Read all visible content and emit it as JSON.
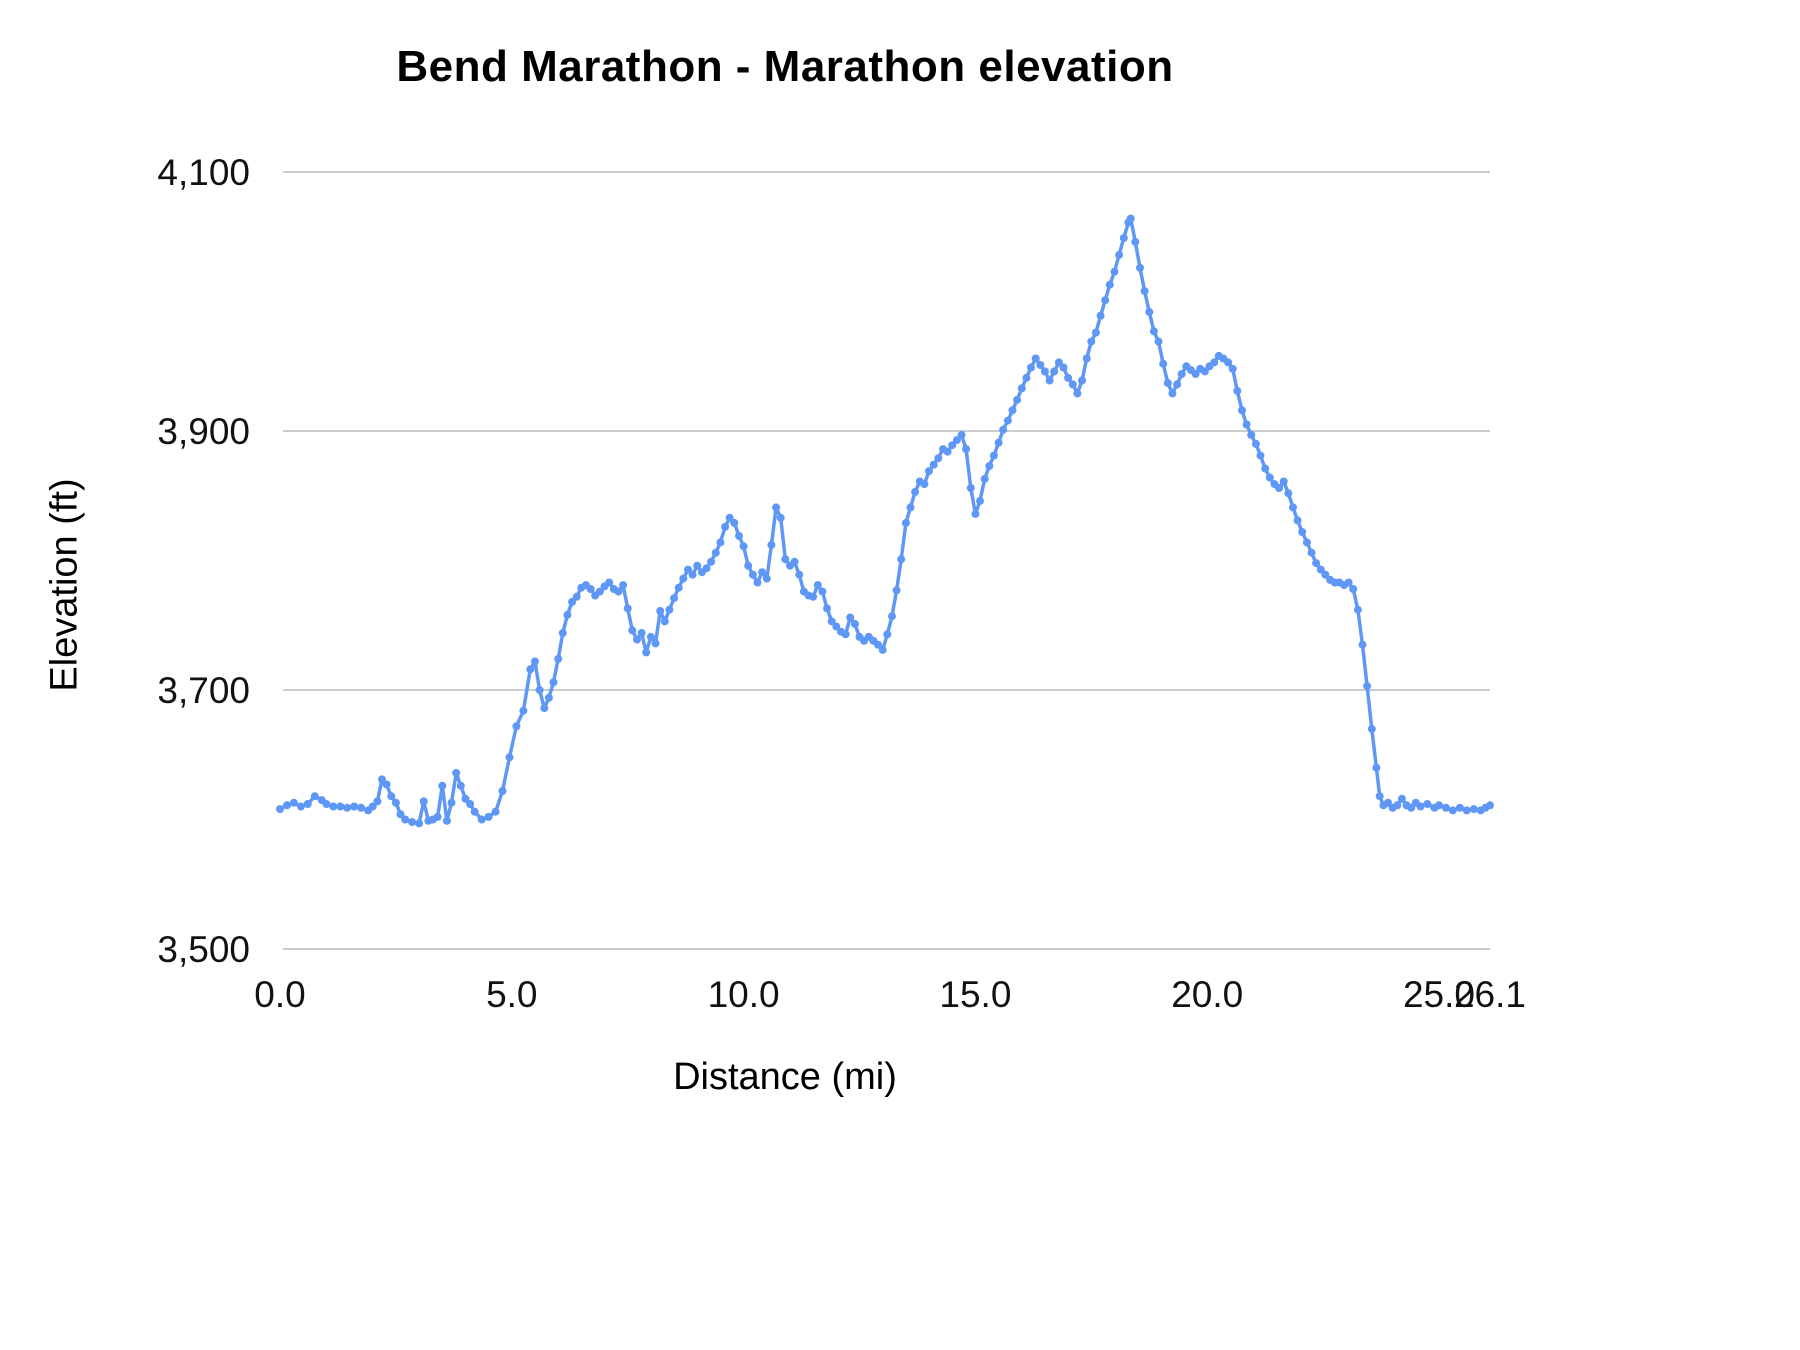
{
  "colors": {
    "line": "#5e97f6",
    "grid": "#cccccc",
    "tick_text": "#111111",
    "title_text": "#000000"
  },
  "chart_data": {
    "type": "line",
    "title": "Bend Marathon - Marathon elevation",
    "xlabel": "Distance (mi)",
    "ylabel": "Elevation (ft)",
    "xlim": [
      0,
      26.1
    ],
    "ylim": [
      3500,
      4100
    ],
    "grid": "horizontal-only",
    "legend": "none",
    "marker": "point",
    "xticks": [
      {
        "v": 0.0,
        "label": "0.0"
      },
      {
        "v": 5.0,
        "label": "5.0"
      },
      {
        "v": 10.0,
        "label": "10.0"
      },
      {
        "v": 15.0,
        "label": "15.0"
      },
      {
        "v": 20.0,
        "label": "20.0"
      },
      {
        "v": 25.0,
        "label": "25.0"
      },
      {
        "v": 26.1,
        "label": "26.1"
      }
    ],
    "yticks": [
      {
        "v": 3500,
        "label": "3,500"
      },
      {
        "v": 3700,
        "label": "3,700"
      },
      {
        "v": 3900,
        "label": "3,900"
      },
      {
        "v": 4100,
        "label": "4,100"
      }
    ],
    "series_name": "Marathon elevation",
    "points": [
      [
        0.0,
        3608
      ],
      [
        0.15,
        3611
      ],
      [
        0.3,
        3613
      ],
      [
        0.45,
        3610
      ],
      [
        0.6,
        3612
      ],
      [
        0.75,
        3618
      ],
      [
        0.9,
        3615
      ],
      [
        1.0,
        3612
      ],
      [
        1.15,
        3610
      ],
      [
        1.3,
        3610
      ],
      [
        1.45,
        3609
      ],
      [
        1.6,
        3610
      ],
      [
        1.75,
        3609
      ],
      [
        1.9,
        3607
      ],
      [
        2.0,
        3610
      ],
      [
        2.1,
        3614
      ],
      [
        2.2,
        3631
      ],
      [
        2.3,
        3627
      ],
      [
        2.4,
        3618
      ],
      [
        2.5,
        3613
      ],
      [
        2.6,
        3604
      ],
      [
        2.7,
        3600
      ],
      [
        2.85,
        3598
      ],
      [
        3.0,
        3597
      ],
      [
        3.1,
        3614
      ],
      [
        3.2,
        3599
      ],
      [
        3.3,
        3600
      ],
      [
        3.4,
        3602
      ],
      [
        3.5,
        3626
      ],
      [
        3.6,
        3599
      ],
      [
        3.7,
        3613
      ],
      [
        3.8,
        3636
      ],
      [
        3.9,
        3626
      ],
      [
        4.0,
        3616
      ],
      [
        4.1,
        3612
      ],
      [
        4.2,
        3606
      ],
      [
        4.35,
        3600
      ],
      [
        4.5,
        3602
      ],
      [
        4.65,
        3606
      ],
      [
        4.8,
        3622
      ],
      [
        4.95,
        3648
      ],
      [
        5.1,
        3672
      ],
      [
        5.25,
        3684
      ],
      [
        5.4,
        3716
      ],
      [
        5.5,
        3722
      ],
      [
        5.6,
        3700
      ],
      [
        5.7,
        3686
      ],
      [
        5.8,
        3694
      ],
      [
        5.9,
        3706
      ],
      [
        6.0,
        3724
      ],
      [
        6.1,
        3744
      ],
      [
        6.2,
        3758
      ],
      [
        6.3,
        3768
      ],
      [
        6.4,
        3772
      ],
      [
        6.5,
        3779
      ],
      [
        6.6,
        3781
      ],
      [
        6.7,
        3778
      ],
      [
        6.8,
        3773
      ],
      [
        6.9,
        3776
      ],
      [
        7.0,
        3780
      ],
      [
        7.1,
        3783
      ],
      [
        7.2,
        3778
      ],
      [
        7.3,
        3776
      ],
      [
        7.4,
        3781
      ],
      [
        7.5,
        3763
      ],
      [
        7.6,
        3746
      ],
      [
        7.7,
        3739
      ],
      [
        7.8,
        3744
      ],
      [
        7.9,
        3729
      ],
      [
        8.0,
        3741
      ],
      [
        8.1,
        3736
      ],
      [
        8.2,
        3761
      ],
      [
        8.3,
        3753
      ],
      [
        8.4,
        3762
      ],
      [
        8.5,
        3771
      ],
      [
        8.6,
        3779
      ],
      [
        8.7,
        3786
      ],
      [
        8.8,
        3793
      ],
      [
        8.9,
        3789
      ],
      [
        9.0,
        3796
      ],
      [
        9.1,
        3791
      ],
      [
        9.2,
        3794
      ],
      [
        9.3,
        3799
      ],
      [
        9.4,
        3806
      ],
      [
        9.5,
        3814
      ],
      [
        9.6,
        3826
      ],
      [
        9.7,
        3833
      ],
      [
        9.8,
        3829
      ],
      [
        9.9,
        3819
      ],
      [
        10.0,
        3811
      ],
      [
        10.1,
        3796
      ],
      [
        10.2,
        3789
      ],
      [
        10.3,
        3783
      ],
      [
        10.4,
        3791
      ],
      [
        10.5,
        3786
      ],
      [
        10.6,
        3812
      ],
      [
        10.7,
        3841
      ],
      [
        10.8,
        3833
      ],
      [
        10.9,
        3801
      ],
      [
        11.0,
        3796
      ],
      [
        11.1,
        3799
      ],
      [
        11.2,
        3789
      ],
      [
        11.3,
        3776
      ],
      [
        11.4,
        3773
      ],
      [
        11.5,
        3772
      ],
      [
        11.6,
        3781
      ],
      [
        11.7,
        3776
      ],
      [
        11.8,
        3763
      ],
      [
        11.9,
        3753
      ],
      [
        12.0,
        3749
      ],
      [
        12.1,
        3745
      ],
      [
        12.2,
        3743
      ],
      [
        12.3,
        3756
      ],
      [
        12.4,
        3751
      ],
      [
        12.5,
        3741
      ],
      [
        12.6,
        3738
      ],
      [
        12.7,
        3741
      ],
      [
        12.8,
        3738
      ],
      [
        12.9,
        3735
      ],
      [
        13.0,
        3731
      ],
      [
        13.1,
        3743
      ],
      [
        13.2,
        3757
      ],
      [
        13.3,
        3777
      ],
      [
        13.4,
        3801
      ],
      [
        13.5,
        3829
      ],
      [
        13.6,
        3841
      ],
      [
        13.7,
        3853
      ],
      [
        13.8,
        3861
      ],
      [
        13.9,
        3859
      ],
      [
        14.0,
        3869
      ],
      [
        14.1,
        3874
      ],
      [
        14.2,
        3879
      ],
      [
        14.3,
        3886
      ],
      [
        14.4,
        3884
      ],
      [
        14.5,
        3889
      ],
      [
        14.6,
        3893
      ],
      [
        14.7,
        3897
      ],
      [
        14.8,
        3886
      ],
      [
        14.9,
        3856
      ],
      [
        15.0,
        3836
      ],
      [
        15.1,
        3846
      ],
      [
        15.2,
        3863
      ],
      [
        15.3,
        3873
      ],
      [
        15.4,
        3881
      ],
      [
        15.5,
        3891
      ],
      [
        15.6,
        3901
      ],
      [
        15.7,
        3908
      ],
      [
        15.8,
        3916
      ],
      [
        15.9,
        3924
      ],
      [
        16.0,
        3933
      ],
      [
        16.1,
        3941
      ],
      [
        16.2,
        3949
      ],
      [
        16.3,
        3956
      ],
      [
        16.4,
        3951
      ],
      [
        16.5,
        3946
      ],
      [
        16.6,
        3939
      ],
      [
        16.7,
        3946
      ],
      [
        16.8,
        3953
      ],
      [
        16.9,
        3949
      ],
      [
        17.0,
        3941
      ],
      [
        17.1,
        3936
      ],
      [
        17.2,
        3929
      ],
      [
        17.3,
        3939
      ],
      [
        17.4,
        3956
      ],
      [
        17.5,
        3969
      ],
      [
        17.6,
        3976
      ],
      [
        17.7,
        3989
      ],
      [
        17.8,
        4001
      ],
      [
        17.9,
        4013
      ],
      [
        18.0,
        4023
      ],
      [
        18.1,
        4036
      ],
      [
        18.2,
        4049
      ],
      [
        18.3,
        4061
      ],
      [
        18.35,
        4064
      ],
      [
        18.45,
        4046
      ],
      [
        18.55,
        4026
      ],
      [
        18.65,
        4008
      ],
      [
        18.75,
        3992
      ],
      [
        18.85,
        3977
      ],
      [
        18.95,
        3969
      ],
      [
        19.05,
        3952
      ],
      [
        19.15,
        3937
      ],
      [
        19.25,
        3929
      ],
      [
        19.35,
        3936
      ],
      [
        19.45,
        3944
      ],
      [
        19.55,
        3950
      ],
      [
        19.65,
        3947
      ],
      [
        19.75,
        3944
      ],
      [
        19.85,
        3948
      ],
      [
        19.95,
        3946
      ],
      [
        20.05,
        3950
      ],
      [
        20.15,
        3953
      ],
      [
        20.25,
        3958
      ],
      [
        20.35,
        3956
      ],
      [
        20.45,
        3953
      ],
      [
        20.55,
        3948
      ],
      [
        20.65,
        3931
      ],
      [
        20.75,
        3916
      ],
      [
        20.85,
        3905
      ],
      [
        20.95,
        3897
      ],
      [
        21.05,
        3890
      ],
      [
        21.15,
        3881
      ],
      [
        21.25,
        3871
      ],
      [
        21.35,
        3864
      ],
      [
        21.45,
        3859
      ],
      [
        21.55,
        3856
      ],
      [
        21.65,
        3861
      ],
      [
        21.75,
        3852
      ],
      [
        21.85,
        3841
      ],
      [
        21.95,
        3831
      ],
      [
        22.05,
        3822
      ],
      [
        22.15,
        3814
      ],
      [
        22.25,
        3806
      ],
      [
        22.35,
        3798
      ],
      [
        22.45,
        3793
      ],
      [
        22.55,
        3789
      ],
      [
        22.65,
        3785
      ],
      [
        22.75,
        3783
      ],
      [
        22.85,
        3783
      ],
      [
        22.95,
        3781
      ],
      [
        23.05,
        3783
      ],
      [
        23.15,
        3778
      ],
      [
        23.25,
        3762
      ],
      [
        23.35,
        3735
      ],
      [
        23.45,
        3703
      ],
      [
        23.55,
        3670
      ],
      [
        23.65,
        3640
      ],
      [
        23.72,
        3618
      ],
      [
        23.8,
        3611
      ],
      [
        23.9,
        3613
      ],
      [
        24.0,
        3609
      ],
      [
        24.1,
        3611
      ],
      [
        24.2,
        3616
      ],
      [
        24.3,
        3611
      ],
      [
        24.4,
        3609
      ],
      [
        24.5,
        3613
      ],
      [
        24.6,
        3610
      ],
      [
        24.75,
        3612
      ],
      [
        24.9,
        3609
      ],
      [
        25.0,
        3611
      ],
      [
        25.15,
        3609
      ],
      [
        25.3,
        3607
      ],
      [
        25.45,
        3609
      ],
      [
        25.6,
        3607
      ],
      [
        25.75,
        3608
      ],
      [
        25.9,
        3607
      ],
      [
        26.0,
        3609
      ],
      [
        26.1,
        3611
      ]
    ]
  }
}
